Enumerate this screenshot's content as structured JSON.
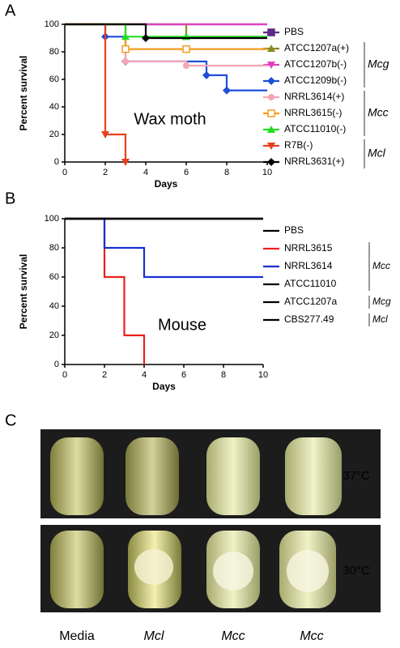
{
  "panels": [
    "A",
    "B",
    "C"
  ],
  "chart_data": [
    {
      "type": "step",
      "annotation": "Wax moth",
      "xlabel": "Days",
      "ylabel": "Percent survival",
      "xlim": [
        0,
        10
      ],
      "xticks": [
        0,
        2,
        4,
        6,
        8,
        10
      ],
      "ylim": [
        0,
        100
      ],
      "yticks": [
        0,
        20,
        40,
        60,
        80,
        100
      ],
      "groups": [
        "Mcg",
        "Mcc",
        "Mcl"
      ],
      "series": [
        {
          "name": "PBS",
          "color": "#5b2a86",
          "marker": "square",
          "x": [
            0,
            10
          ],
          "values": [
            100,
            100
          ]
        },
        {
          "name": "ATCC1207a(+)",
          "color": "#8a8a22",
          "marker": "triangle",
          "x": [
            0,
            6,
            10
          ],
          "values": [
            100,
            91,
            91
          ]
        },
        {
          "name": "ATCC1207b(-)",
          "color": "#e040c0",
          "marker": "triangle-down",
          "x": [
            0,
            10
          ],
          "values": [
            100,
            100
          ]
        },
        {
          "name": "ATCC1209b(-)",
          "color": "#1f4fd8",
          "marker": "diamond",
          "x": [
            0,
            2,
            3,
            7,
            8,
            10
          ],
          "values": [
            100,
            91,
            73,
            63,
            52,
            52
          ]
        },
        {
          "name": "NRRL3614(+)",
          "color": "#f4a6b5",
          "marker": "circle",
          "x": [
            0,
            3,
            6,
            10
          ],
          "values": [
            100,
            73,
            70,
            70
          ]
        },
        {
          "name": "NRRL3615(-)",
          "color": "#f39c1e",
          "marker": "open-square",
          "x": [
            0,
            3,
            6,
            10
          ],
          "values": [
            100,
            82,
            82,
            82
          ]
        },
        {
          "name": "ATCC11010(-)",
          "color": "#22dd22",
          "marker": "triangle",
          "x": [
            0,
            3,
            6,
            10
          ],
          "values": [
            100,
            91,
            91,
            91
          ]
        },
        {
          "name": "R7B(-)",
          "color": "#e8401c",
          "marker": "triangle-down",
          "x": [
            0,
            2,
            3
          ],
          "values": [
            100,
            20,
            0
          ]
        },
        {
          "name": "NRRL3631(+)",
          "color": "#000000",
          "marker": "diamond",
          "x": [
            0,
            4,
            10
          ],
          "values": [
            100,
            90,
            90
          ]
        }
      ]
    },
    {
      "type": "step",
      "annotation": "Mouse",
      "xlabel": "Days",
      "ylabel": "Percent survival",
      "xlim": [
        0,
        10
      ],
      "xticks": [
        0,
        2,
        4,
        6,
        8,
        10
      ],
      "ylim": [
        0,
        100
      ],
      "yticks": [
        0,
        20,
        40,
        60,
        80,
        100
      ],
      "groups": [
        "Mcc",
        "Mcg",
        "Mcl"
      ],
      "series": [
        {
          "name": "PBS",
          "color": "#000000",
          "x": [
            0,
            10
          ],
          "values": [
            100,
            100
          ]
        },
        {
          "name": "NRRL3615",
          "color": "#e8201c",
          "x": [
            0,
            2,
            3,
            4
          ],
          "values": [
            100,
            60,
            20,
            0
          ]
        },
        {
          "name": "NRRL3614",
          "color": "#1a2fd0",
          "x": [
            0,
            2,
            4,
            10
          ],
          "values": [
            100,
            80,
            60,
            60
          ]
        },
        {
          "name": "ATCC11010",
          "color": "#000000",
          "x": [
            0,
            10
          ],
          "values": [
            100,
            100
          ]
        },
        {
          "name": "ATCC1207a",
          "color": "#000000",
          "x": [
            0,
            10
          ],
          "values": [
            100,
            100
          ]
        },
        {
          "name": "CBS277.49",
          "color": "#000000",
          "x": [
            0,
            10
          ],
          "values": [
            100,
            100
          ]
        }
      ]
    }
  ],
  "photo": {
    "temperatures": [
      "37°C",
      "30°C"
    ],
    "tubes": [
      "Media",
      "Mcl",
      "Mcc",
      "Mcc"
    ]
  }
}
